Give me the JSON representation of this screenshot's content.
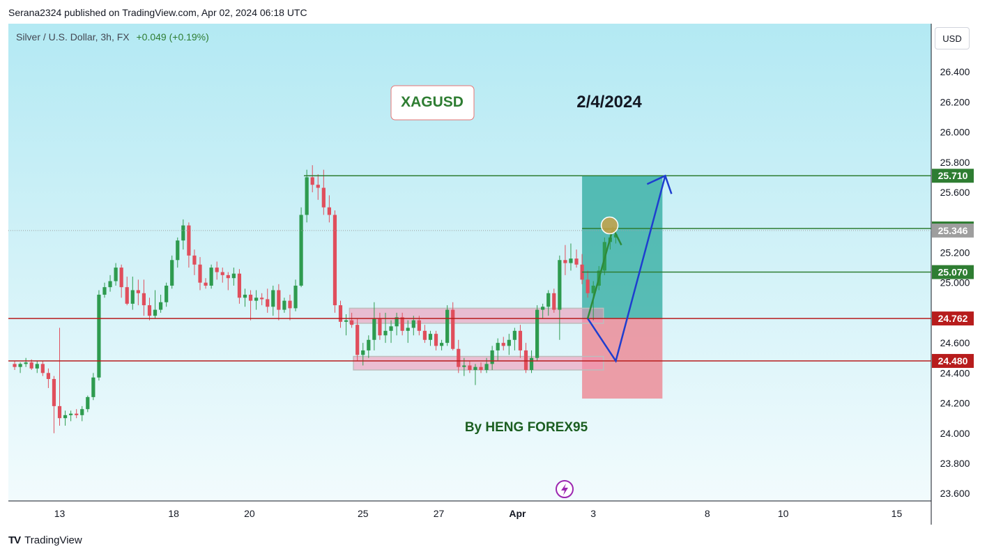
{
  "header": {
    "published_by": "Serana2324 published on TradingView.com, Apr 02, 2024 06:18 UTC"
  },
  "symbol": {
    "name": "Silver / U.S. Dollar, 3h, FX",
    "change": "+0.049 (+0.19%)"
  },
  "currency_button": "USD",
  "footer": {
    "brand": "TradingView",
    "logo_icon": "tradingview-logo-icon"
  },
  "colors": {
    "up": "#2e9b4f",
    "down": "#e04e5c",
    "green_line": "#2e7d32",
    "red_line": "#b71c1c",
    "price_badge_gray": "#9e9e9e",
    "target_zone": "#26a69a",
    "stop_zone": "#ef7a87",
    "arrow_blue": "#1e3ecf",
    "annotation_text": "#2e7d32"
  },
  "chart_data": {
    "type": "candlestick",
    "title": "",
    "ylim": [
      23.55,
      26.72
    ],
    "y_ticks": [
      "23.600",
      "23.800",
      "24.000",
      "24.200",
      "24.400",
      "24.600",
      "25.000",
      "25.200",
      "25.600",
      "25.800",
      "26.000",
      "26.200",
      "26.400"
    ],
    "x_ticks": [
      {
        "label": "13",
        "bar": 8.5
      },
      {
        "label": "18",
        "bar": 28.8
      },
      {
        "label": "20",
        "bar": 42.3
      },
      {
        "label": "25",
        "bar": 62.5
      },
      {
        "label": "27",
        "bar": 76.0
      },
      {
        "label": "Apr",
        "bar": 90.0
      },
      {
        "label": "3",
        "bar": 103.5
      },
      {
        "label": "8",
        "bar": 123.8
      },
      {
        "label": "10",
        "bar": 137.3
      },
      {
        "label": "15",
        "bar": 157.5
      }
    ],
    "ohlc": [
      [
        24.46,
        24.48,
        24.42,
        24.44
      ],
      [
        24.44,
        24.47,
        24.4,
        24.46
      ],
      [
        24.46,
        24.5,
        24.44,
        24.47
      ],
      [
        24.47,
        24.49,
        24.42,
        24.43
      ],
      [
        24.43,
        24.48,
        24.4,
        24.46
      ],
      [
        24.46,
        24.48,
        24.38,
        24.4
      ],
      [
        24.4,
        24.43,
        24.3,
        24.36
      ],
      [
        24.36,
        24.38,
        24.0,
        24.18
      ],
      [
        24.18,
        24.7,
        24.05,
        24.1
      ],
      [
        24.1,
        24.15,
        24.05,
        24.12
      ],
      [
        24.12,
        24.15,
        24.08,
        24.13
      ],
      [
        24.13,
        24.16,
        24.1,
        24.12
      ],
      [
        24.12,
        24.18,
        24.08,
        24.16
      ],
      [
        24.16,
        24.25,
        24.14,
        24.24
      ],
      [
        24.24,
        24.4,
        24.22,
        24.37
      ],
      [
        24.37,
        24.95,
        24.35,
        24.92
      ],
      [
        24.92,
        25.0,
        24.9,
        24.97
      ],
      [
        24.97,
        25.05,
        24.94,
        25.01
      ],
      [
        25.01,
        25.13,
        24.98,
        25.1
      ],
      [
        25.1,
        25.12,
        24.9,
        24.97
      ],
      [
        24.97,
        25.04,
        24.85,
        24.86
      ],
      [
        24.86,
        25.04,
        24.82,
        24.95
      ],
      [
        24.95,
        25.02,
        24.85,
        24.93
      ],
      [
        24.93,
        25.02,
        24.78,
        24.85
      ],
      [
        24.85,
        24.9,
        24.75,
        24.78
      ],
      [
        24.78,
        24.95,
        24.76,
        24.82
      ],
      [
        24.82,
        24.92,
        24.8,
        24.87
      ],
      [
        24.87,
        25.0,
        24.84,
        24.98
      ],
      [
        24.98,
        25.18,
        24.96,
        25.15
      ],
      [
        25.15,
        25.3,
        25.1,
        25.28
      ],
      [
        25.28,
        25.42,
        25.22,
        25.38
      ],
      [
        25.38,
        25.4,
        25.1,
        25.18
      ],
      [
        25.18,
        25.22,
        25.05,
        25.12
      ],
      [
        25.12,
        25.17,
        24.95,
        25.0
      ],
      [
        25.0,
        25.03,
        24.96,
        24.98
      ],
      [
        24.98,
        25.12,
        24.96,
        25.1
      ],
      [
        25.1,
        25.14,
        25.02,
        25.07
      ],
      [
        25.07,
        25.1,
        25.0,
        25.05
      ],
      [
        25.05,
        25.07,
        24.95,
        25.03
      ],
      [
        25.03,
        25.1,
        24.98,
        25.06
      ],
      [
        25.06,
        25.09,
        24.86,
        24.9
      ],
      [
        24.9,
        24.96,
        24.84,
        24.92
      ],
      [
        24.92,
        24.95,
        24.75,
        24.88
      ],
      [
        24.88,
        24.95,
        24.82,
        24.9
      ],
      [
        24.9,
        24.93,
        24.85,
        24.89
      ],
      [
        24.89,
        24.96,
        24.8,
        24.84
      ],
      [
        24.84,
        24.98,
        24.78,
        24.95
      ],
      [
        24.95,
        24.99,
        24.75,
        24.82
      ],
      [
        24.82,
        24.9,
        24.8,
        24.88
      ],
      [
        24.88,
        24.92,
        24.75,
        24.83
      ],
      [
        24.83,
        25.02,
        24.81,
        24.98
      ],
      [
        24.98,
        25.5,
        24.97,
        25.45
      ],
      [
        25.45,
        25.75,
        25.4,
        25.7
      ],
      [
        25.7,
        25.78,
        25.6,
        25.65
      ],
      [
        25.65,
        25.72,
        25.55,
        25.63
      ],
      [
        25.63,
        25.75,
        25.45,
        25.5
      ],
      [
        25.5,
        25.58,
        25.4,
        25.45
      ],
      [
        25.45,
        25.48,
        24.8,
        24.85
      ],
      [
        24.85,
        24.88,
        24.7,
        24.74
      ],
      [
        24.74,
        24.79,
        24.65,
        24.75
      ],
      [
        24.75,
        24.8,
        24.7,
        24.72
      ],
      [
        24.72,
        24.76,
        24.48,
        24.52
      ],
      [
        24.52,
        24.6,
        24.45,
        24.55
      ],
      [
        24.55,
        24.65,
        24.5,
        24.62
      ],
      [
        24.62,
        24.87,
        24.55,
        24.76
      ],
      [
        24.76,
        24.8,
        24.62,
        24.65
      ],
      [
        24.65,
        24.8,
        24.6,
        24.68
      ],
      [
        24.68,
        24.75,
        24.6,
        24.71
      ],
      [
        24.71,
        24.8,
        24.65,
        24.77
      ],
      [
        24.77,
        24.8,
        24.65,
        24.68
      ],
      [
        24.68,
        24.75,
        24.6,
        24.7
      ],
      [
        24.7,
        24.78,
        24.65,
        24.75
      ],
      [
        24.75,
        24.78,
        24.65,
        24.68
      ],
      [
        24.68,
        24.72,
        24.6,
        24.62
      ],
      [
        24.62,
        24.68,
        24.58,
        24.66
      ],
      [
        24.66,
        24.68,
        24.55,
        24.58
      ],
      [
        24.58,
        24.62,
        24.55,
        24.6
      ],
      [
        24.6,
        24.85,
        24.58,
        24.82
      ],
      [
        24.82,
        24.87,
        24.55,
        24.56
      ],
      [
        24.56,
        24.62,
        24.4,
        24.44
      ],
      [
        24.44,
        24.5,
        24.38,
        24.45
      ],
      [
        24.45,
        24.48,
        24.4,
        24.42
      ],
      [
        24.42,
        24.46,
        24.32,
        24.44
      ],
      [
        24.44,
        24.47,
        24.4,
        24.42
      ],
      [
        24.42,
        24.5,
        24.4,
        24.46
      ],
      [
        24.46,
        24.58,
        24.42,
        24.55
      ],
      [
        24.55,
        24.63,
        24.48,
        24.6
      ],
      [
        24.6,
        24.64,
        24.55,
        24.58
      ],
      [
        24.58,
        24.66,
        24.52,
        24.62
      ],
      [
        24.62,
        24.7,
        24.55,
        24.68
      ],
      [
        24.68,
        24.72,
        24.5,
        24.55
      ],
      [
        24.55,
        24.6,
        24.4,
        24.42
      ],
      [
        24.42,
        24.55,
        24.4,
        24.5
      ],
      [
        24.5,
        24.85,
        24.48,
        24.82
      ],
      [
        24.82,
        24.86,
        24.76,
        24.84
      ],
      [
        24.84,
        24.95,
        24.78,
        24.93
      ],
      [
        24.93,
        24.96,
        24.8,
        24.82
      ],
      [
        24.82,
        25.18,
        24.62,
        25.15
      ],
      [
        25.15,
        25.25,
        25.05,
        25.13
      ],
      [
        25.13,
        25.26,
        25.08,
        25.16
      ],
      [
        25.16,
        25.22,
        25.1,
        25.12
      ],
      [
        25.12,
        25.19,
        24.99,
        25.02
      ],
      [
        25.02,
        25.08,
        24.9,
        24.93
      ],
      [
        24.93,
        25.01,
        24.75,
        24.98
      ],
      [
        24.98,
        25.11,
        24.95,
        25.08
      ],
      [
        25.08,
        25.3,
        25.05,
        25.27
      ],
      [
        25.27,
        25.33,
        25.22,
        25.3
      ],
      [
        25.3,
        25.36,
        25.26,
        25.32
      ]
    ],
    "price_badges": [
      "25.710",
      "25.360",
      "25.346",
      "25.070",
      "24.762",
      "24.480"
    ],
    "levels": [
      {
        "kind": "target",
        "value": 25.71
      },
      {
        "kind": "level",
        "value": 25.36
      },
      {
        "kind": "current",
        "value": 25.346
      },
      {
        "kind": "level",
        "value": 25.07
      },
      {
        "kind": "support",
        "value": 24.762
      },
      {
        "kind": "support",
        "value": 24.48
      }
    ],
    "position": {
      "entry": 24.762,
      "target": 25.71,
      "stop": 24.23,
      "from_bar": 101.5,
      "to_bar": 115.8
    },
    "zones": [
      {
        "from_bar": 60.1,
        "to_bar": 105.3,
        "low": 24.73,
        "high": 24.83
      },
      {
        "from_bar": 60.8,
        "to_bar": 105.3,
        "low": 24.42,
        "high": 24.51
      }
    ],
    "projection_blue": [
      [
        102.5,
        24.762
      ],
      [
        107.5,
        24.48
      ],
      [
        116.3,
        25.71
      ]
    ],
    "projection_green": [
      [
        102.5,
        24.762
      ],
      [
        107.0,
        25.36
      ],
      [
        108.5,
        25.25
      ]
    ],
    "annotations": {
      "ticker": "XAGUSD",
      "date": "2/4/2024",
      "author": "By HENG FOREX95"
    }
  }
}
